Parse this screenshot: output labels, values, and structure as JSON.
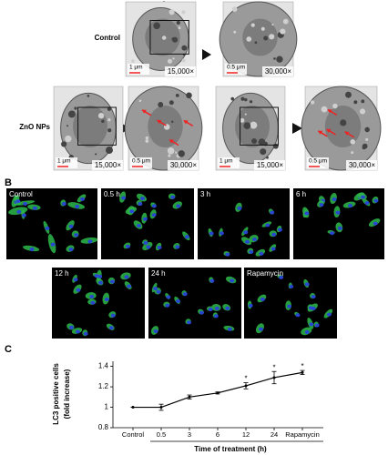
{
  "panel_a": {
    "label": "A",
    "control": {
      "label": "Control",
      "images": [
        {
          "scale": "1 μm",
          "magnification": "15,000×"
        },
        {
          "scale": "0.5 μm",
          "magnification": "30,000×"
        }
      ]
    },
    "zno": {
      "label": "ZnO NPs",
      "images": [
        {
          "scale": "1 μm",
          "magnification": "15,000×"
        },
        {
          "scale": "0.5 μm",
          "magnification": "30,000×"
        },
        {
          "scale": "1 μm",
          "magnification": "15,000×"
        },
        {
          "scale": "0.5 μm",
          "magnification": "30,000×"
        }
      ]
    }
  },
  "panel_b": {
    "label": "B",
    "images": [
      "Control",
      "0.5 h",
      "3 h",
      "6 h",
      "12 h",
      "24 h",
      "Rapamycin"
    ]
  },
  "chart_data": {
    "type": "line",
    "panel_label": "C",
    "y_label": [
      "LC3 positive cells",
      "(fold increase)"
    ],
    "x_label": "Time of treatment (h)",
    "categories": [
      "Control",
      "0.5",
      "3",
      "6",
      "12",
      "24",
      "Rapamycin"
    ],
    "series": [
      {
        "color": "#000000",
        "values": [
          1.0,
          1.0,
          1.1,
          1.14,
          1.21,
          1.29,
          1.34
        ],
        "errors": [
          0,
          0.03,
          0.02,
          0.01,
          0.03,
          0.06,
          0.02
        ]
      }
    ],
    "significance": [
      null,
      null,
      null,
      null,
      "*",
      "*",
      "*"
    ],
    "ylim": [
      0.8,
      1.45
    ],
    "yticks": [
      0.8,
      1,
      1.2,
      1.4
    ]
  }
}
